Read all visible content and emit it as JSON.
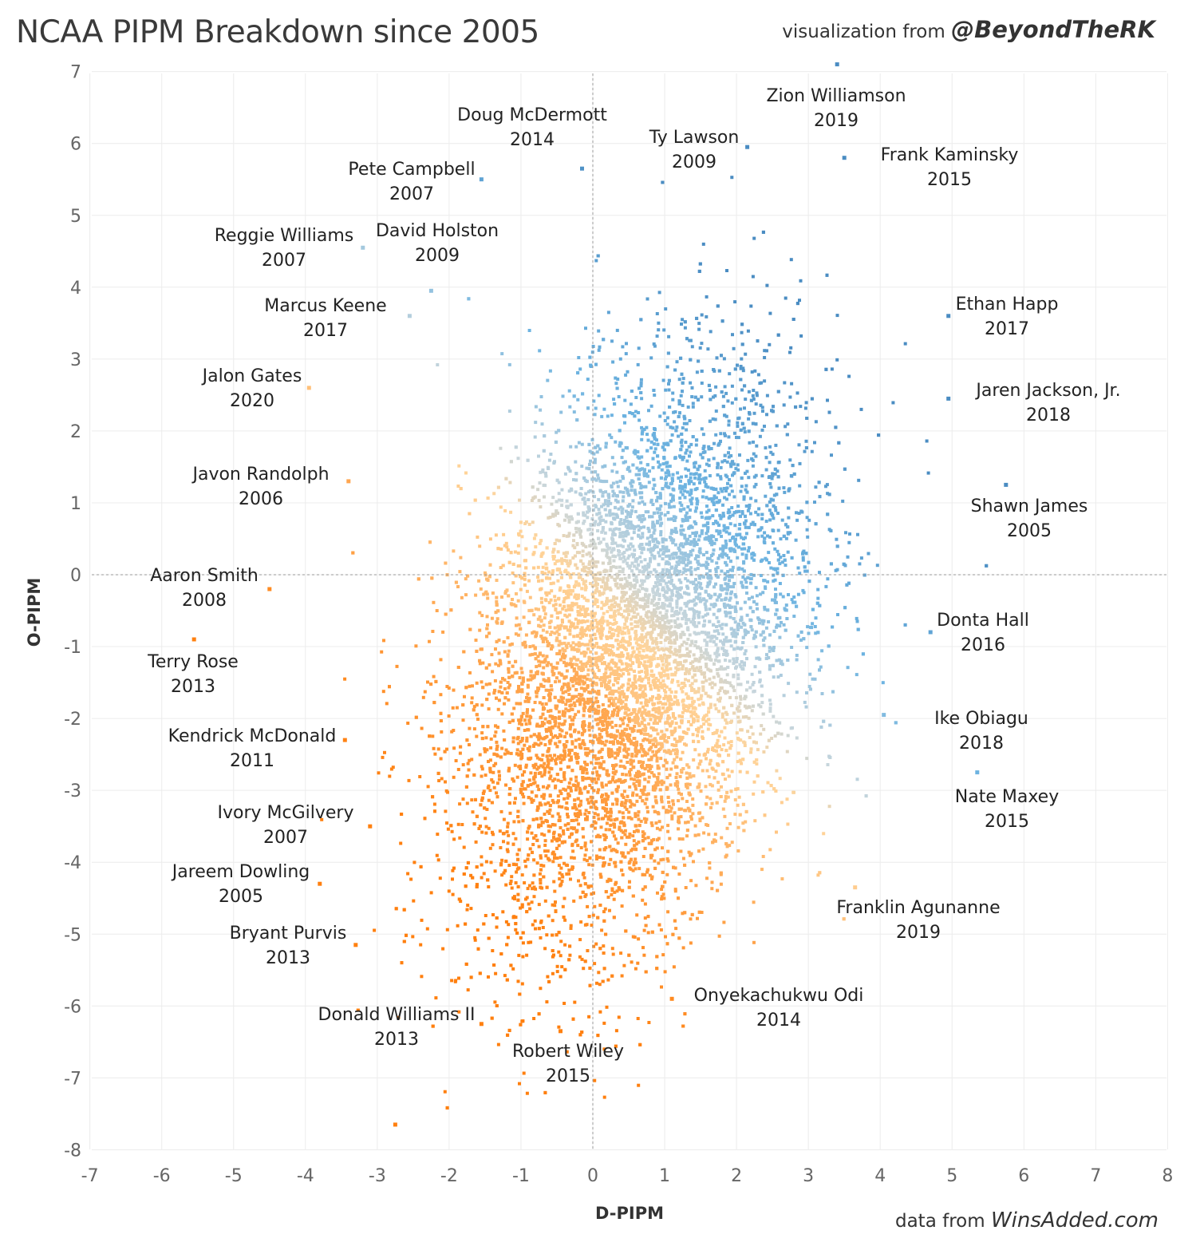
{
  "header": {
    "title": "NCAA PIPM Breakdown since 2005",
    "credit_prefix": "visualization from",
    "credit_handle": "@BeyondTheRK"
  },
  "footer": {
    "source_prefix": "data from",
    "source_site": "WinsAdded.com"
  },
  "chart_data": {
    "type": "scatter",
    "title": "NCAA PIPM Breakdown since 2005",
    "xlabel": "D-PIPM",
    "ylabel": "O-PIPM",
    "xlim": [
      -7,
      8
    ],
    "ylim": [
      -8,
      7
    ],
    "xticks": [
      -7,
      -6,
      -5,
      -4,
      -3,
      -2,
      -1,
      0,
      1,
      2,
      3,
      4,
      5,
      6,
      7,
      8
    ],
    "yticks": [
      7,
      6,
      5,
      4,
      3,
      2,
      1,
      0,
      -1,
      -2,
      -3,
      -4,
      -5,
      -6,
      -7,
      -8
    ],
    "grid": true,
    "reference_lines": {
      "x": 0,
      "y": 0
    },
    "color_scale": {
      "low": "#ff7f0e",
      "mid": "#ffd49a",
      "neutral": "#c8d6dc",
      "high": "#4a8cc2"
    },
    "highlighted_players": [
      {
        "name": "Zion Williamson",
        "year": "2019",
        "x": 3.4,
        "y": 7.1
      },
      {
        "name": "Doug McDermott",
        "year": "2014",
        "x": -0.15,
        "y": 5.65
      },
      {
        "name": "Ty Lawson",
        "year": "2009",
        "x": 2.15,
        "y": 5.95
      },
      {
        "name": "Frank Kaminsky",
        "year": "2015",
        "x": 3.5,
        "y": 5.8
      },
      {
        "name": "Pete Campbell",
        "year": "2007",
        "x": -1.55,
        "y": 5.5
      },
      {
        "name": "Reggie Williams",
        "year": "2007",
        "x": -3.2,
        "y": 4.55
      },
      {
        "name": "David Holston",
        "year": "2009",
        "x": -2.25,
        "y": 3.95
      },
      {
        "name": "Marcus Keene",
        "year": "2017",
        "x": -2.55,
        "y": 3.6
      },
      {
        "name": "Ethan Happ",
        "year": "2017",
        "x": 4.95,
        "y": 3.6
      },
      {
        "name": "Jalon Gates",
        "year": "2020",
        "x": -3.95,
        "y": 2.6
      },
      {
        "name": "Jaren Jackson, Jr.",
        "year": "2018",
        "x": 4.95,
        "y": 2.45
      },
      {
        "name": "Javon Randolph",
        "year": "2006",
        "x": -3.4,
        "y": 1.3
      },
      {
        "name": "Shawn James",
        "year": "2005",
        "x": 5.75,
        "y": 1.25
      },
      {
        "name": "Aaron Smith",
        "year": "2008",
        "x": -4.5,
        "y": -0.2
      },
      {
        "name": "Donta Hall",
        "year": "2016",
        "x": 4.7,
        "y": -0.8
      },
      {
        "name": "Terry Rose",
        "year": "2013",
        "x": -5.55,
        "y": -0.9
      },
      {
        "name": "Ike Obiagu",
        "year": "2018",
        "x": 4.05,
        "y": -1.95
      },
      {
        "name": "Kendrick McDonald",
        "year": "2011",
        "x": -3.45,
        "y": -2.3
      },
      {
        "name": "Nate Maxey",
        "year": "2015",
        "x": 5.35,
        "y": -2.75
      },
      {
        "name": "Ivory McGilvery",
        "year": "2007",
        "x": -3.1,
        "y": -3.5
      },
      {
        "name": "Jareem Dowling",
        "year": "2005",
        "x": -3.8,
        "y": -4.3
      },
      {
        "name": "Franklin Agunanne",
        "year": "2019",
        "x": 3.65,
        "y": -4.35
      },
      {
        "name": "Bryant Purvis",
        "year": "2013",
        "x": -3.3,
        "y": -5.15
      },
      {
        "name": "Onyekachukwu Odi",
        "year": "2014",
        "x": 1.1,
        "y": -5.9
      },
      {
        "name": "Donald Williams II",
        "year": "2013",
        "x": -1.55,
        "y": -6.25
      },
      {
        "name": "Robert Wiley",
        "year": "2015",
        "x": -0.45,
        "y": -6.35
      },
      {
        "name": "",
        "year": "",
        "x": -2.75,
        "y": -7.65
      }
    ]
  }
}
